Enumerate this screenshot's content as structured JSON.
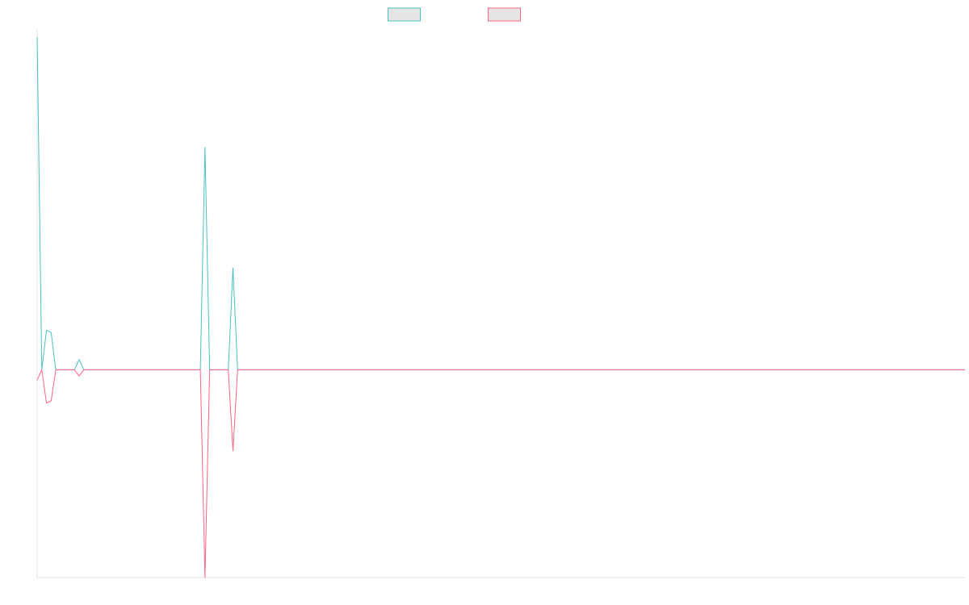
{
  "chart_data": {
    "type": "line",
    "title": "",
    "xlabel": "",
    "ylabel": "",
    "grid": false,
    "legend_position": "top-center",
    "x_count": 200,
    "ylim": [
      -1,
      1.64
    ],
    "series": [
      {
        "name": "",
        "color": "#4bc0c0",
        "fill": "#e5e5e5",
        "points": [
          [
            0,
            1.6
          ],
          [
            1,
            0
          ],
          [
            2,
            0.19
          ],
          [
            3,
            0.18
          ],
          [
            4,
            0
          ],
          [
            8,
            0
          ],
          [
            9,
            0.05
          ],
          [
            10,
            0
          ],
          [
            35,
            0
          ],
          [
            36,
            1.07
          ],
          [
            37,
            0
          ],
          [
            41,
            0
          ],
          [
            42,
            0.49
          ],
          [
            43,
            0
          ],
          [
            199,
            0
          ]
        ]
      },
      {
        "name": "",
        "color": "#ff6384",
        "fill": "#e5e5e5",
        "points": [
          [
            0,
            -0.05
          ],
          [
            1,
            0
          ],
          [
            2,
            -0.16
          ],
          [
            3,
            -0.15
          ],
          [
            4,
            0
          ],
          [
            8,
            0
          ],
          [
            9,
            -0.03
          ],
          [
            10,
            0
          ],
          [
            35,
            0
          ],
          [
            36,
            -1.0
          ],
          [
            37,
            0
          ],
          [
            41,
            0
          ],
          [
            42,
            -0.39
          ],
          [
            43,
            0
          ],
          [
            199,
            0
          ]
        ]
      }
    ]
  }
}
